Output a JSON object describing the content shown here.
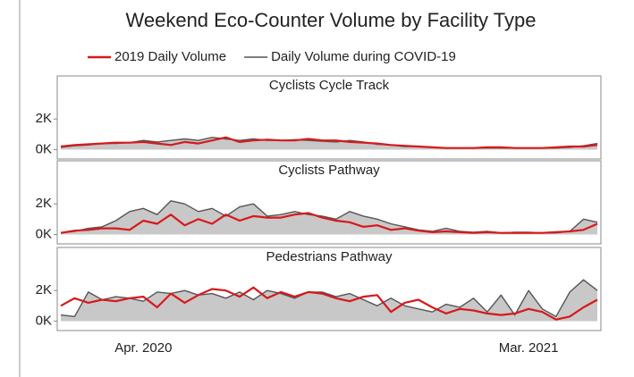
{
  "title": "Weekend Eco-Counter Volume by Facility Type",
  "chart_data": [
    {
      "type": "line",
      "title": "Cyclists Cycle Track",
      "ylim": [
        -500,
        4700
      ],
      "yticks": [
        {
          "value": 0,
          "label": "0K"
        },
        {
          "value": 2000,
          "label": "2K"
        }
      ],
      "area_color": "#c8c8c8",
      "series": [
        {
          "name": "2019 Daily Volume",
          "color": "#d7191c",
          "values": [
            200,
            300,
            350,
            400,
            450,
            450,
            500,
            400,
            300,
            500,
            400,
            600,
            800,
            500,
            600,
            650,
            600,
            600,
            700,
            600,
            600,
            500,
            450,
            400,
            300,
            250,
            200,
            150,
            100,
            100,
            100,
            150,
            150,
            100,
            100,
            100,
            150,
            200,
            200,
            300
          ]
        },
        {
          "name": "Daily Volume during COVID-19",
          "color": "#555555",
          "values": [
            150,
            250,
            300,
            400,
            400,
            450,
            600,
            500,
            600,
            700,
            600,
            800,
            700,
            600,
            700,
            600,
            600,
            650,
            600,
            550,
            500,
            600,
            500,
            350,
            300,
            200,
            200,
            150,
            100,
            100,
            100,
            100,
            100,
            100,
            100,
            100,
            100,
            150,
            250,
            400
          ]
        }
      ]
    },
    {
      "type": "line",
      "title": "Cyclists Pathway",
      "ylim": [
        -500,
        4700
      ],
      "yticks": [
        {
          "value": 0,
          "label": "0K"
        },
        {
          "value": 2000,
          "label": "2K"
        }
      ],
      "area_color": "#c8c8c8",
      "series": [
        {
          "name": "2019 Daily Volume",
          "color": "#d7191c",
          "values": [
            100,
            250,
            300,
            400,
            400,
            300,
            900,
            700,
            1300,
            600,
            1000,
            700,
            1300,
            900,
            1200,
            1100,
            1100,
            1300,
            1400,
            1100,
            900,
            800,
            500,
            600,
            300,
            400,
            250,
            150,
            200,
            150,
            100,
            150,
            100,
            100,
            100,
            100,
            150,
            200,
            300,
            700
          ]
        },
        {
          "name": "Daily Volume during COVID-19",
          "color": "#555555",
          "values": [
            100,
            200,
            400,
            500,
            900,
            1500,
            1700,
            1300,
            2200,
            2000,
            1500,
            1700,
            1200,
            1800,
            2000,
            1200,
            1300,
            1500,
            1300,
            1200,
            1000,
            1500,
            1200,
            1000,
            700,
            500,
            300,
            200,
            400,
            200,
            150,
            200,
            100,
            150,
            150,
            100,
            100,
            200,
            1000,
            800
          ]
        }
      ]
    },
    {
      "type": "line",
      "title": "Pedestrians Pathway",
      "categories": [
        null,
        null,
        null,
        null,
        null,
        null,
        "Apr. 2020",
        null,
        null,
        null,
        null,
        null,
        null,
        null,
        null,
        null,
        null,
        null,
        null,
        null,
        null,
        null,
        null,
        null,
        null,
        null,
        null,
        null,
        null,
        null,
        null,
        null,
        null,
        null,
        "Mar. 2021",
        null,
        null,
        null,
        null,
        null
      ],
      "ylim": [
        -500,
        4700
      ],
      "yticks": [
        {
          "value": 0,
          "label": "0K"
        },
        {
          "value": 2000,
          "label": "2K"
        }
      ],
      "area_color": "#c8c8c8",
      "series": [
        {
          "name": "2019 Daily Volume",
          "color": "#d7191c",
          "values": [
            1000,
            1500,
            1200,
            1400,
            1300,
            1500,
            1600,
            900,
            1800,
            1200,
            1700,
            2100,
            2000,
            1600,
            2200,
            1500,
            1900,
            1600,
            1900,
            1800,
            1500,
            1300,
            1600,
            1700,
            600,
            1200,
            1400,
            900,
            500,
            800,
            700,
            500,
            400,
            500,
            800,
            600,
            100,
            300,
            900,
            1400
          ]
        },
        {
          "name": "Daily Volume during COVID-19",
          "color": "#555555",
          "values": [
            400,
            300,
            1900,
            1400,
            1600,
            1500,
            1300,
            1900,
            1800,
            2000,
            1700,
            1800,
            1500,
            1900,
            1400,
            2000,
            1800,
            1500,
            1900,
            1900,
            1600,
            1800,
            1400,
            1000,
            1500,
            1000,
            800,
            600,
            1100,
            900,
            1500,
            600,
            1700,
            400,
            2000,
            800,
            300,
            1900,
            2700,
            2000
          ]
        }
      ]
    }
  ]
}
